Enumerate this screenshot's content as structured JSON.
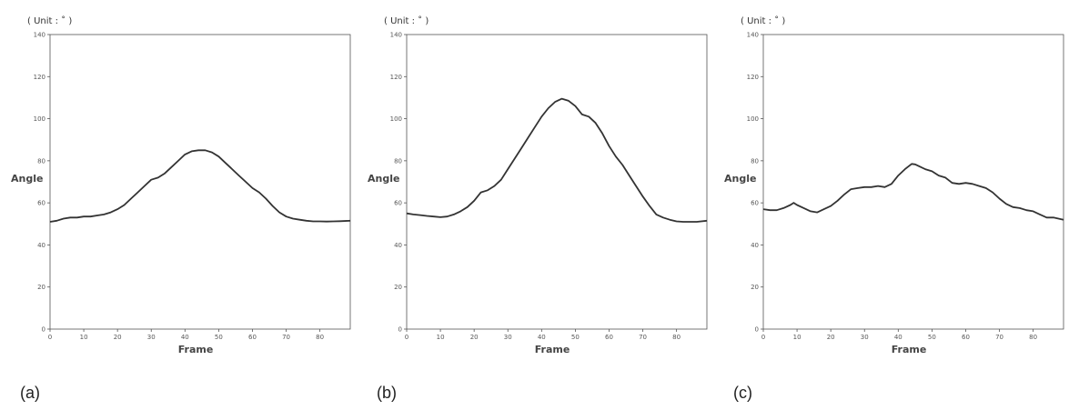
{
  "chart_data": [
    {
      "type": "line",
      "panel_label": "(a)",
      "unit_label": "( Unit : ˚ )",
      "xlabel": "Frame",
      "ylabel": "Angle",
      "xlim": [
        0,
        89
      ],
      "ylim": [
        0,
        140
      ],
      "xticks": [
        0,
        10,
        20,
        30,
        40,
        50,
        60,
        70,
        80
      ],
      "yticks": [
        0,
        20,
        40,
        60,
        80,
        100,
        120,
        140
      ],
      "grid": false,
      "color": "#333333",
      "x": [
        0,
        2,
        4,
        6,
        8,
        10,
        12,
        14,
        16,
        18,
        20,
        22,
        24,
        26,
        28,
        30,
        32,
        34,
        36,
        38,
        40,
        42,
        44,
        46,
        48,
        50,
        52,
        54,
        56,
        58,
        60,
        62,
        64,
        66,
        68,
        70,
        72,
        74,
        76,
        78,
        80,
        82,
        84,
        86,
        89
      ],
      "y": [
        51,
        51.5,
        52.5,
        53,
        53,
        53.5,
        53.5,
        54,
        54.5,
        55.5,
        57,
        59,
        62,
        65,
        68,
        71,
        72,
        74,
        77,
        80,
        83,
        84.5,
        85,
        85,
        84,
        82,
        79,
        76,
        73,
        70,
        67,
        65,
        62,
        58.5,
        55.5,
        53.5,
        52.5,
        52,
        51.5,
        51.2,
        51.2,
        51.1,
        51.2,
        51.3,
        51.5
      ]
    },
    {
      "type": "line",
      "panel_label": "(b)",
      "unit_label": "( Unit : ˚ )",
      "xlabel": "Frame",
      "ylabel": "Angle",
      "xlim": [
        0,
        89
      ],
      "ylim": [
        0,
        140
      ],
      "xticks": [
        0,
        10,
        20,
        30,
        40,
        50,
        60,
        70,
        80
      ],
      "yticks": [
        0,
        20,
        40,
        60,
        80,
        100,
        120,
        140
      ],
      "grid": false,
      "color": "#333333",
      "x": [
        0,
        2,
        4,
        6,
        8,
        10,
        12,
        14,
        16,
        18,
        20,
        22,
        24,
        26,
        28,
        30,
        32,
        34,
        36,
        38,
        40,
        42,
        44,
        46,
        48,
        50,
        52,
        54,
        56,
        58,
        60,
        62,
        64,
        66,
        68,
        70,
        72,
        74,
        76,
        78,
        80,
        82,
        84,
        86,
        89
      ],
      "y": [
        55,
        54.5,
        54.2,
        53.8,
        53.5,
        53.2,
        53.5,
        54.5,
        56,
        58,
        61,
        65,
        66,
        68,
        71,
        76,
        81,
        86,
        91,
        96,
        101,
        105,
        108,
        109.5,
        108.5,
        106,
        102,
        101,
        98,
        93,
        87,
        82,
        78,
        73,
        68,
        63,
        58.5,
        54.5,
        53,
        52,
        51.2,
        51,
        51,
        51,
        51.5
      ]
    },
    {
      "type": "line",
      "panel_label": "(c)",
      "unit_label": "( Unit : ˚ )",
      "xlabel": "Frame",
      "ylabel": "Angle",
      "xlim": [
        0,
        89
      ],
      "ylim": [
        0,
        140
      ],
      "xticks": [
        0,
        10,
        20,
        30,
        40,
        50,
        60,
        70,
        80
      ],
      "yticks": [
        0,
        20,
        40,
        60,
        80,
        100,
        120,
        140
      ],
      "grid": false,
      "color": "#333333",
      "x": [
        0,
        2,
        4,
        6,
        8,
        9,
        10,
        12,
        14,
        16,
        18,
        20,
        22,
        24,
        26,
        28,
        30,
        32,
        34,
        36,
        38,
        40,
        42,
        44,
        45,
        46,
        48,
        50,
        52,
        54,
        56,
        58,
        60,
        62,
        64,
        66,
        68,
        70,
        72,
        74,
        76,
        78,
        80,
        82,
        84,
        86,
        89
      ],
      "y": [
        57,
        56.5,
        56.5,
        57.5,
        59,
        60,
        59,
        57.5,
        56,
        55.5,
        57,
        58.5,
        61,
        64,
        66.5,
        67,
        67.5,
        67.5,
        68,
        67.5,
        69,
        73,
        76,
        78.5,
        78.3,
        77.5,
        76,
        75,
        73,
        72,
        69.5,
        69,
        69.5,
        69,
        68,
        67,
        65,
        62,
        59.5,
        58,
        57.5,
        56.5,
        56,
        54.5,
        53,
        53,
        52
      ]
    }
  ]
}
